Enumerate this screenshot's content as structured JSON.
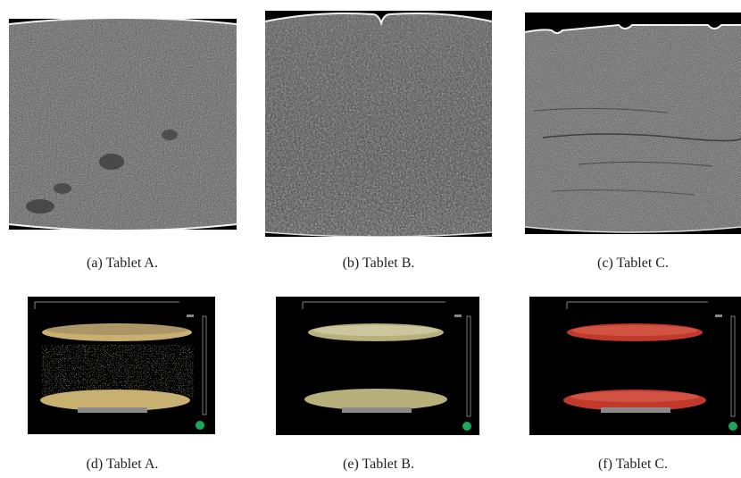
{
  "figure": {
    "panels": [
      {
        "id": "a",
        "caption": "(a) Tablet A.",
        "kind": "ct-slice",
        "tablet": "A"
      },
      {
        "id": "b",
        "caption": "(b) Tablet B.",
        "kind": "ct-slice",
        "tablet": "B"
      },
      {
        "id": "c",
        "caption": "(c) Tablet C.",
        "kind": "ct-slice",
        "tablet": "C"
      },
      {
        "id": "d",
        "caption": "(d) Tablet A.",
        "kind": "3d-render",
        "tablet": "A",
        "tint": "#c8b070"
      },
      {
        "id": "e",
        "caption": "(e) Tablet B.",
        "kind": "3d-render",
        "tablet": "B",
        "tint": "#b8b07a"
      },
      {
        "id": "f",
        "caption": "(f) Tablet C.",
        "kind": "3d-render",
        "tablet": "C",
        "tint": "#c0392b"
      }
    ]
  }
}
